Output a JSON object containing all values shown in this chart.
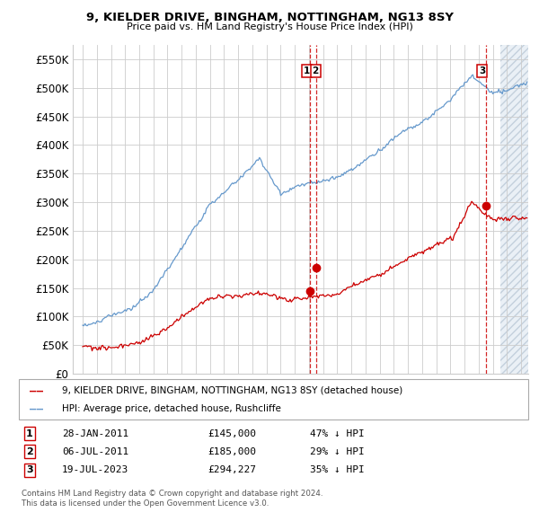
{
  "title1": "9, KIELDER DRIVE, BINGHAM, NOTTINGHAM, NG13 8SY",
  "title2": "Price paid vs. HM Land Registry's House Price Index (HPI)",
  "ytick_labels": [
    "£0",
    "£50K",
    "£100K",
    "£150K",
    "£200K",
    "£250K",
    "£300K",
    "£350K",
    "£400K",
    "£450K",
    "£500K",
    "£550K"
  ],
  "yticks": [
    0,
    50000,
    100000,
    150000,
    200000,
    250000,
    300000,
    350000,
    400000,
    450000,
    500000,
    550000
  ],
  "ylim_max": 575000,
  "xmin": 1994.3,
  "xmax": 2026.5,
  "legend_red": "9, KIELDER DRIVE, BINGHAM, NOTTINGHAM, NG13 8SY (detached house)",
  "legend_blue": "HPI: Average price, detached house, Rushcliffe",
  "sale1_label": "1",
  "sale1_date": "28-JAN-2011",
  "sale1_price": "£145,000",
  "sale1_hpi": "47% ↓ HPI",
  "sale1_year": 2011.07,
  "sale1_y": 145000,
  "sale2_label": "2",
  "sale2_date": "06-JUL-2011",
  "sale2_price": "£185,000",
  "sale2_hpi": "29% ↓ HPI",
  "sale2_year": 2011.51,
  "sale2_y": 185000,
  "sale3_label": "3",
  "sale3_date": "19-JUL-2023",
  "sale3_price": "£294,227",
  "sale3_hpi": "35% ↓ HPI",
  "sale3_year": 2023.54,
  "sale3_y": 294227,
  "hatch_start": 2024.5,
  "red_color": "#cc0000",
  "blue_color": "#6699cc",
  "hatch_color": "#c5d5e8",
  "grid_color": "#cccccc",
  "bg_color": "#ffffff",
  "border_color": "#aaaaaa",
  "footnote1": "Contains HM Land Registry data © Crown copyright and database right 2024.",
  "footnote2": "This data is licensed under the Open Government Licence v3.0."
}
